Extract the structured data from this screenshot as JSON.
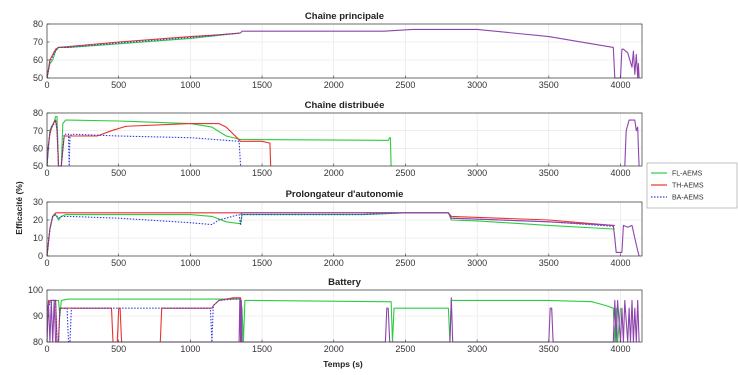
{
  "figure": {
    "ylabel": "Efficacité (%)",
    "xlabel": "Temps (s)"
  },
  "chart_data": [
    {
      "type": "line",
      "title": "Chaîne principale",
      "xlim": [
        0,
        4150
      ],
      "ylim": [
        50,
        80
      ],
      "xticks": [
        0,
        500,
        1000,
        1500,
        2000,
        2500,
        3000,
        3500,
        4000
      ],
      "yticks": [
        50,
        60,
        70,
        80
      ],
      "grid": true,
      "series": [
        {
          "name": "FL-AEMS",
          "color": "#2ecc40",
          "style": "solid",
          "x": [
            0,
            20,
            40,
            60,
            80,
            150,
            500,
            1000,
            1350
          ],
          "y": [
            50,
            58,
            60,
            65,
            67,
            67,
            69,
            72,
            75
          ]
        },
        {
          "name": "TH-AEMS",
          "color": "#e8332e",
          "style": "solid",
          "x": [
            0,
            20,
            40,
            60,
            80,
            150,
            500,
            1000,
            1200,
            1350
          ],
          "y": [
            50,
            60,
            63,
            66,
            67,
            67.5,
            70,
            73,
            74,
            75
          ]
        },
        {
          "name": "BA-AEMS",
          "color": "#2e3fd9",
          "style": "dotted",
          "x": [
            0,
            20,
            40,
            60,
            80,
            150,
            500,
            1000,
            1350
          ],
          "y": [
            50,
            59,
            62,
            65,
            67,
            67,
            69.5,
            72.5,
            75
          ]
        },
        {
          "name": "",
          "color": "#8e44ad",
          "style": "solid",
          "x": [
            1350,
            1360,
            2350,
            2550,
            3000,
            3500,
            3950,
            3960,
            3980,
            4000,
            4010,
            4020,
            4050,
            4080,
            4090,
            4100,
            4110,
            4120,
            4125,
            4130
          ],
          "y": [
            75,
            76,
            76,
            77,
            77,
            73,
            67,
            50,
            50,
            50,
            66,
            66,
            64,
            56,
            65,
            52,
            63,
            50,
            58,
            50
          ]
        }
      ]
    },
    {
      "type": "line",
      "title": "Chaîne distribuée",
      "xlim": [
        0,
        4150
      ],
      "ylim": [
        50,
        80
      ],
      "xticks": [
        0,
        500,
        1000,
        1500,
        2000,
        2500,
        3000,
        3500,
        4000
      ],
      "yticks": [
        50,
        60,
        70,
        80
      ],
      "grid": true,
      "series": [
        {
          "name": "FL-AEMS",
          "color": "#2ecc40",
          "style": "solid",
          "x": [
            0,
            10,
            20,
            30,
            50,
            60,
            70,
            80,
            90,
            100,
            110,
            130,
            150,
            500,
            1000,
            1150,
            1250,
            1350,
            2380,
            2390,
            2395,
            2400
          ],
          "y": [
            50,
            60,
            70,
            72,
            75,
            78,
            78,
            50,
            50,
            50,
            74,
            76,
            76,
            75.5,
            74,
            72,
            67,
            65,
            64.5,
            66,
            66,
            50
          ]
        },
        {
          "name": "TH-AEMS",
          "color": "#e8332e",
          "style": "solid",
          "x": [
            0,
            10,
            20,
            30,
            50,
            60,
            70,
            80,
            90,
            100,
            120,
            150,
            350,
            450,
            550,
            1000,
            1100,
            1200,
            1250,
            1350,
            1500,
            1550,
            1555,
            1560
          ],
          "y": [
            50,
            62,
            68,
            71,
            75,
            76,
            70,
            50,
            50,
            50,
            67,
            67,
            67,
            70,
            72.5,
            74,
            74,
            74,
            72,
            64,
            64,
            63,
            63,
            50
          ]
        },
        {
          "name": "BA-AEMS",
          "color": "#2e3fd9",
          "style": "dotted",
          "x": [
            0,
            10,
            20,
            30,
            50,
            60,
            70,
            80,
            90,
            100,
            120,
            150,
            155,
            160,
            170,
            500,
            1000,
            1340,
            1350,
            1355
          ],
          "y": [
            50,
            61,
            69,
            72,
            74,
            76,
            72,
            50,
            50,
            50,
            68,
            68,
            50,
            66,
            68,
            67,
            66,
            64,
            50,
            50
          ]
        },
        {
          "name": "",
          "color": "#8e44ad",
          "style": "solid",
          "x": [
            4030,
            4040,
            4060,
            4080,
            4100,
            4110,
            4120,
            4125,
            4130
          ],
          "y": [
            50,
            70,
            76,
            76,
            76,
            70,
            72,
            60,
            50
          ]
        }
      ]
    },
    {
      "type": "line",
      "title": "Prolongateur d'autonomie",
      "xlim": [
        0,
        4150
      ],
      "ylim": [
        0,
        30
      ],
      "xticks": [
        0,
        500,
        1000,
        1500,
        2000,
        2500,
        3000,
        3500,
        4000
      ],
      "yticks": [
        0,
        10,
        20,
        30
      ],
      "grid": true,
      "series": [
        {
          "name": "FL-AEMS",
          "color": "#2ecc40",
          "style": "solid",
          "x": [
            0,
            20,
            40,
            60,
            80,
            100,
            130,
            150,
            500,
            1000,
            1150,
            1250,
            1340,
            1350,
            1360,
            2200,
            2500,
            2800,
            2820,
            3000,
            3500,
            3950,
            3960
          ],
          "y": [
            0,
            15,
            22,
            23,
            20,
            22,
            23,
            23,
            23,
            23,
            22,
            19,
            18,
            18,
            23,
            23,
            24,
            24,
            20,
            19.5,
            17,
            15,
            15
          ]
        },
        {
          "name": "TH-AEMS",
          "color": "#e8332e",
          "style": "solid",
          "x": [
            0,
            20,
            40,
            60,
            80,
            100,
            130,
            150,
            500,
            1000,
            1100,
            1340,
            1350,
            1360,
            2200,
            2500,
            2800,
            2820,
            3500,
            3950,
            3960
          ],
          "y": [
            0,
            15,
            22,
            24,
            24,
            24,
            24,
            24,
            24,
            24,
            24,
            24,
            24,
            24,
            24,
            24,
            24,
            22,
            20,
            17,
            17
          ]
        },
        {
          "name": "BA-AEMS",
          "color": "#2e3fd9",
          "style": "dotted",
          "x": [
            0,
            20,
            40,
            60,
            80,
            100,
            130,
            150,
            500,
            1000,
            1150,
            1200,
            1340,
            1350,
            1360,
            2200,
            2500,
            2800,
            2820,
            3500,
            3950,
            3960
          ],
          "y": [
            0,
            15,
            22,
            23,
            21,
            22,
            22,
            22,
            21,
            18.5,
            17.5,
            20,
            23,
            17,
            23,
            23,
            24,
            24,
            21,
            19,
            16.5,
            16.5
          ]
        },
        {
          "name": "",
          "color": "#8e44ad",
          "style": "solid",
          "x": [
            1350,
            1360,
            2200,
            2500,
            2800,
            2820,
            3500,
            3950,
            3960,
            3970,
            3990,
            4010,
            4020,
            4050,
            4080,
            4100,
            4120,
            4130
          ],
          "y": [
            23,
            24,
            24,
            24,
            24,
            21,
            19,
            17,
            10,
            2,
            2,
            2,
            17,
            16,
            17,
            10,
            3,
            0
          ]
        }
      ]
    },
    {
      "type": "line",
      "title": "Battery",
      "xlim": [
        0,
        4150
      ],
      "ylim": [
        80,
        100
      ],
      "xticks": [
        0,
        500,
        1000,
        1500,
        2000,
        2500,
        3000,
        3500,
        4000
      ],
      "yticks": [
        80,
        90,
        100
      ],
      "grid": true,
      "series": [
        {
          "name": "FL-AEMS",
          "color": "#2ecc40",
          "style": "solid",
          "x": [
            0,
            20,
            30,
            60,
            80,
            90,
            100,
            150,
            500,
            1000,
            1350,
            1360,
            1370,
            1380,
            1390,
            1400,
            2350,
            2400,
            2410,
            2420,
            2800,
            2810,
            2820,
            2830,
            3000,
            3500,
            3800,
            3900,
            3950,
            3960,
            3970,
            3980,
            4000
          ],
          "y": [
            92,
            96,
            96,
            96,
            96,
            90,
            96,
            96.5,
            96.5,
            96.5,
            96.5,
            93,
            80,
            96,
            96,
            96,
            95.5,
            95.5,
            80,
            93,
            93,
            80,
            96,
            96,
            96,
            96,
            95.5,
            94,
            93,
            80,
            93,
            80,
            93
          ]
        },
        {
          "name": "TH-AEMS",
          "color": "#e8332e",
          "style": "solid",
          "x": [
            0,
            20,
            40,
            60,
            70,
            80,
            90,
            100,
            150,
            450,
            460,
            470,
            490,
            500,
            510,
            520,
            780,
            790,
            800,
            1140,
            1150,
            1160,
            1200,
            1300,
            1350,
            1355,
            1360
          ],
          "y": [
            93,
            96,
            96,
            96,
            80,
            80,
            93,
            93,
            93,
            93,
            80,
            80,
            80,
            93,
            93,
            80,
            80,
            80,
            93,
            93,
            93,
            94,
            96,
            97,
            97,
            80,
            80
          ]
        },
        {
          "name": "BA-AEMS",
          "color": "#2e3fd9",
          "style": "dotted",
          "x": [
            0,
            20,
            40,
            60,
            70,
            80,
            90,
            100,
            140,
            150,
            160,
            170,
            1100,
            1140,
            1150,
            1160,
            1200,
            1300,
            1350,
            1355
          ],
          "y": [
            92,
            95,
            96,
            96,
            80,
            80,
            93,
            93,
            93,
            80,
            80,
            93,
            93,
            93,
            80,
            94,
            96,
            96.5,
            96.5,
            80
          ]
        },
        {
          "name": "",
          "color": "#8e44ad",
          "style": "solid",
          "x": [
            0,
            10,
            20,
            30,
            40,
            50,
            60,
            1340,
            1345,
            1350,
            1355,
            1360,
            2360,
            2370,
            2380,
            2390,
            2810,
            2820,
            2830,
            3500,
            3510,
            3520,
            3530,
            3950,
            3960,
            3970,
            3980,
            4000,
            4010,
            4020,
            4030,
            4050,
            4060,
            4070,
            4080,
            4090,
            4100,
            4110,
            4120,
            4130
          ],
          "y": [
            80,
            96,
            80,
            96,
            80,
            96,
            80,
            80,
            96,
            80,
            96,
            80,
            80,
            93,
            93,
            80,
            80,
            97,
            80,
            80,
            93,
            93,
            80,
            80,
            96,
            80,
            96,
            80,
            93,
            80,
            96,
            80,
            93,
            80,
            96,
            80,
            93,
            80,
            96,
            80
          ]
        }
      ]
    }
  ],
  "legend": {
    "placement": "right",
    "entries": [
      {
        "label": "FL-AEMS",
        "color": "#2ecc40",
        "style": "solid"
      },
      {
        "label": "TH-AEMS",
        "color": "#e8332e",
        "style": "solid"
      },
      {
        "label": "BA-AEMS",
        "color": "#2e3fd9",
        "style": "dotted"
      }
    ]
  }
}
